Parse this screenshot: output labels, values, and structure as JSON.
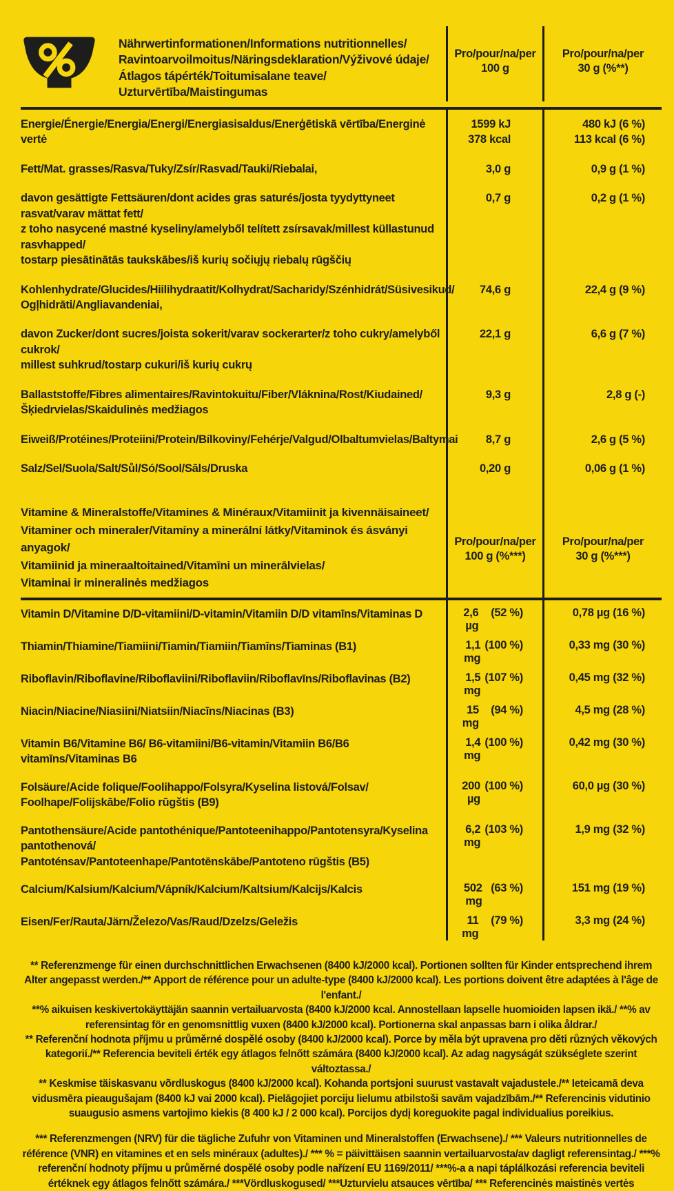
{
  "page": {
    "background": "#F6D50A",
    "ink": "#1D1D1B"
  },
  "header": {
    "title": "Nährwertinformationen/Informations nutritionnelles/\nRavintoarvoilmoitus/Näringsdeklaration/Výživové údaje/\nÁtlagos tápérték/Toitumisalane teave/\nUzturvērtība/Maistingumas",
    "col_per100": "Pro/pour/na/per\n100 g",
    "col_per30": "Pro/pour/na/per\n30 g (%**)"
  },
  "nutrition": {
    "rows": [
      {
        "label": "Energie/Énergie/Energia/Energi/Energiasisaldus/Enerģētiskā vērtība/Energinė vertė",
        "per100": "1599 kJ\n378 kcal",
        "per30": "480 kJ (6 %)\n113 kcal (6 %)"
      },
      {
        "label": "Fett/Mat. grasses/Rasva/Tuky/Zsír/Rasvad/Tauki/Riebalai,",
        "per100": "3,0 g",
        "per30": "0,9 g (1 %)"
      },
      {
        "label": "davon gesättigte Fettsäuren/dont acides gras saturés/josta tyydyttyneet rasvat/varav mättat fett/\nz toho nasycené mastné kyseliny/amelyből telített zsírsavak/millest küllastunud rasvhapped/\ntostarp piesātinātās taukskābes/iš kurių sočiųjų riebalų rūgščių",
        "per100": "0,7 g",
        "per30": "0,2 g (1 %)"
      },
      {
        "label": "Kohlenhydrate/Glucides/Hiilihydraatit/Kolhydrat/Sacharidy/Szénhidrát/Süsivesikud/\nOgļhidrāti/Angliavandeniai,",
        "per100": "74,6 g",
        "per30": "22,4 g (9 %)"
      },
      {
        "label": "davon Zucker/dont sucres/joista sokerit/varav sockerarter/z toho cukry/amelyből cukrok/\nmillest suhkrud/tostarp cukuri/iš kurių cukrų",
        "per100": "22,1 g",
        "per30": "6,6 g (7 %)"
      },
      {
        "label": "Ballaststoffe/Fibres alimentaires/Ravintokuitu/Fiber/Vláknina/Rost/Kiudained/\nŠķiedrvielas/Skaidulinės medžiagos",
        "per100": "9,3 g",
        "per30": "2,8 g (-)"
      },
      {
        "label": "Eiweiß/Protéines/Proteiini/Protein/Bílkoviny/Fehérje/Valgud/Olbaltumvielas/Baltymai",
        "per100": "8,7 g",
        "per30": "2,6 g (5 %)"
      },
      {
        "label": "Salz/Sel/Suola/Salt/Sůl/Só/Sool/Sāls/Druska",
        "per100": "0,20 g",
        "per30": "0,06 g (1 %)"
      }
    ]
  },
  "vitamins": {
    "title": "Vitamine & Mineralstoffe/Vitamines & Minéraux/Vitamiinit ja kivennäisaineet/\nVitaminer och mineraler/Vitamíny a minerální látky/Vitaminok és ásványi anyagok/\nVitamiinid ja mineraaltoitained/Vitamīni un minerālvielas/\nVitaminai ir mineralinės medžiagos",
    "col_per100": "Pro/pour/na/per\n100 g  (%***)",
    "col_per30": "Pro/pour/na/per\n30 g  (%***)",
    "rows": [
      {
        "label": "Vitamin D/Vitamine D/D-vitamiini/D-vitamin/Vitamiin D/D vitamīns/Vitaminas D",
        "per100_amt": "2,6 µg",
        "per100_pct": "(52 %)",
        "per30": "0,78 µg (16 %)"
      },
      {
        "label": "Thiamin/Thiamine/Tiamiini/Tiamin/Tiamiin/Tiamīns/Tiaminas (B1)",
        "per100_amt": "1,1 mg",
        "per100_pct": "(100 %)",
        "per30": "0,33 mg (30 %)"
      },
      {
        "label": "Riboflavin/Riboflavine/Riboflaviini/Riboflaviin/Riboflavīns/Riboflavinas (B2)",
        "per100_amt": "1,5 mg",
        "per100_pct": "(107 %)",
        "per30": "0,45 mg (32 %)"
      },
      {
        "label": "Niacin/Niacine/Niasiini/Niatsiin/Niacīns/Niacinas (B3)",
        "per100_amt": "15 mg",
        "per100_pct": "(94 %)",
        "per30": "4,5 mg (28 %)"
      },
      {
        "label": "Vitamin B6/Vitamine B6/ B6-vitamiini/B6-vitamin/Vitamiin B6/B6 vitamīns/Vitaminas B6",
        "per100_amt": "1,4 mg",
        "per100_pct": "(100 %)",
        "per30": "0,42 mg (30 %)"
      },
      {
        "label": "Folsäure/Acide folique/Foolihappo/Folsyra/Kyselina listová/Folsav/\nFoolhape/Folijskābe/Folio rūgštis (B9)",
        "per100_amt": "200 µg",
        "per100_pct": "(100 %)",
        "per30": "60,0 µg (30 %)"
      },
      {
        "label": "Pantothensäure/Acide pantothénique/Pantoteenihappo/Pantotensyra/Kyselina pantothenová/\nPantoténsav/Pantoteenhape/Pantotēnskābe/Pantoteno rūgštis (B5)",
        "per100_amt": "6,2 mg",
        "per100_pct": "(103 %)",
        "per30": "1,9 mg (32 %)"
      },
      {
        "label": "Calcium/Kalsium/Kalcium/Vápník/Kalcium/Kaltsium/Kalcijs/Kalcis",
        "per100_amt": "502 mg",
        "per100_pct": "(63 %)",
        "per30": "151 mg (19 %)"
      },
      {
        "label": "Eisen/Fer/Rauta/Järn/Železo/Vas/Raud/Dzelzs/Geležis",
        "per100_amt": "11 mg",
        "per100_pct": "(79 %)",
        "per30": "3,3 mg (24 %)"
      }
    ]
  },
  "footnotes": {
    "block1": [
      "** Referenzmenge für einen durchschnittlichen Erwachsenen (8400 kJ/2000 kcal). Portionen sollten für Kinder entsprechend ihrem Alter angepasst werden./** Apport de référence pour un adulte-type (8400 kJ/2000 kcal). Les portions doivent être adaptées à l'âge de l'enfant./",
      "**% aikuisen keskivertokäyttäjän saannin vertailuarvosta (8400 kJ/2000 kcal. Annostellaan lapselle huomioiden lapsen ikä./ **% av referensintag för en genomsnittlig vuxen (8400 kJ/2000 kcal). Portionerna skal anpassas barn i olika åldrar./",
      "** Referenční hodnota příjmu u průměrné dospělé osoby (8400 kJ/2000 kcal). Porce by měla být upravena pro děti různých věkových kategorií./** Referencia beviteli érték egy átlagos felnőtt számára (8400 kJ/2000 kcal). Az adag nagyságát szükséglete szerint változtassa./",
      "** Keskmise täiskasvanu võrdluskogus (8400 kJ/2000 kcal). Kohanda portsjoni suurust vastavalt vajadustele./** Ieteicamā deva vidusmēra pieaugušajam (8400 kJ vai 2000 kcal). Pielāgojiet porciju lielumu atbilstoši savām vajadzībām./** Referencinis vidutinio suaugusio asmens vartojimo kiekis (8 400 kJ / 2 000 kcal). Porcijos dydį koreguokite pagal individualius poreikius."
    ],
    "block2": [
      "*** Referenzmengen (NRV) für die tägliche Zufuhr von Vitaminen und Mineralstoffen (Erwachsene)./ *** Valeurs nutritionnelles de référence (VNR) en vitamines et en sels minéraux (adultes)./ *** % = päivittäisen saannin vertailuarvosta/av dagligt referensintag./ ***% referenční hodnoty příjmu u průměrné dospělé osoby podle nařízení EU 1169/2011/ ***%-a a napi táplálkozási referencia beviteli értéknek egy átlagos felnőtt számára./ ***Vördluskogused/  ***Uzturvielu atsauces vērtība/ *** Referencinės maistinės vertės"
    ]
  }
}
